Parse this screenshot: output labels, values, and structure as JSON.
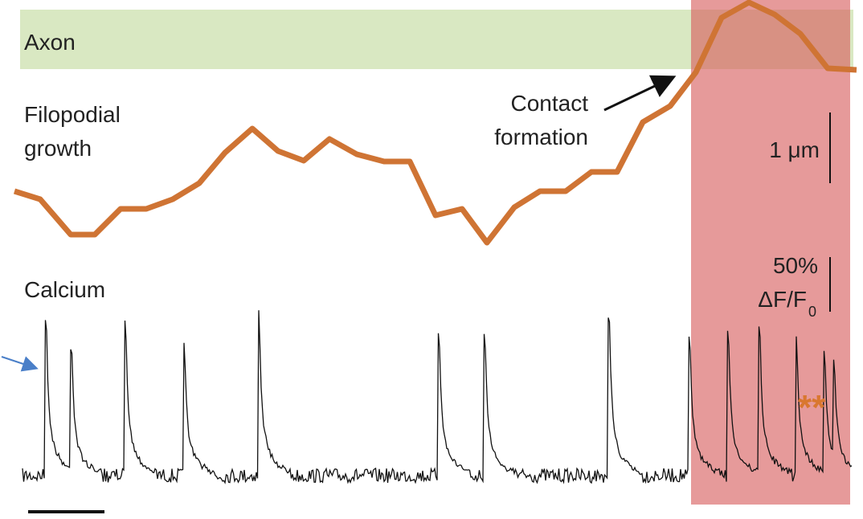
{
  "labels": {
    "axon": "Axon",
    "filopodial": [
      "Filopodial",
      "growth"
    ],
    "contact": [
      "Contact",
      "formation"
    ],
    "scale_growth": "1 μm",
    "calcium": "Calcium",
    "scale_calcium": [
      "50%",
      "ΔF/F",
      "0"
    ],
    "asterisks": "**"
  }
}
